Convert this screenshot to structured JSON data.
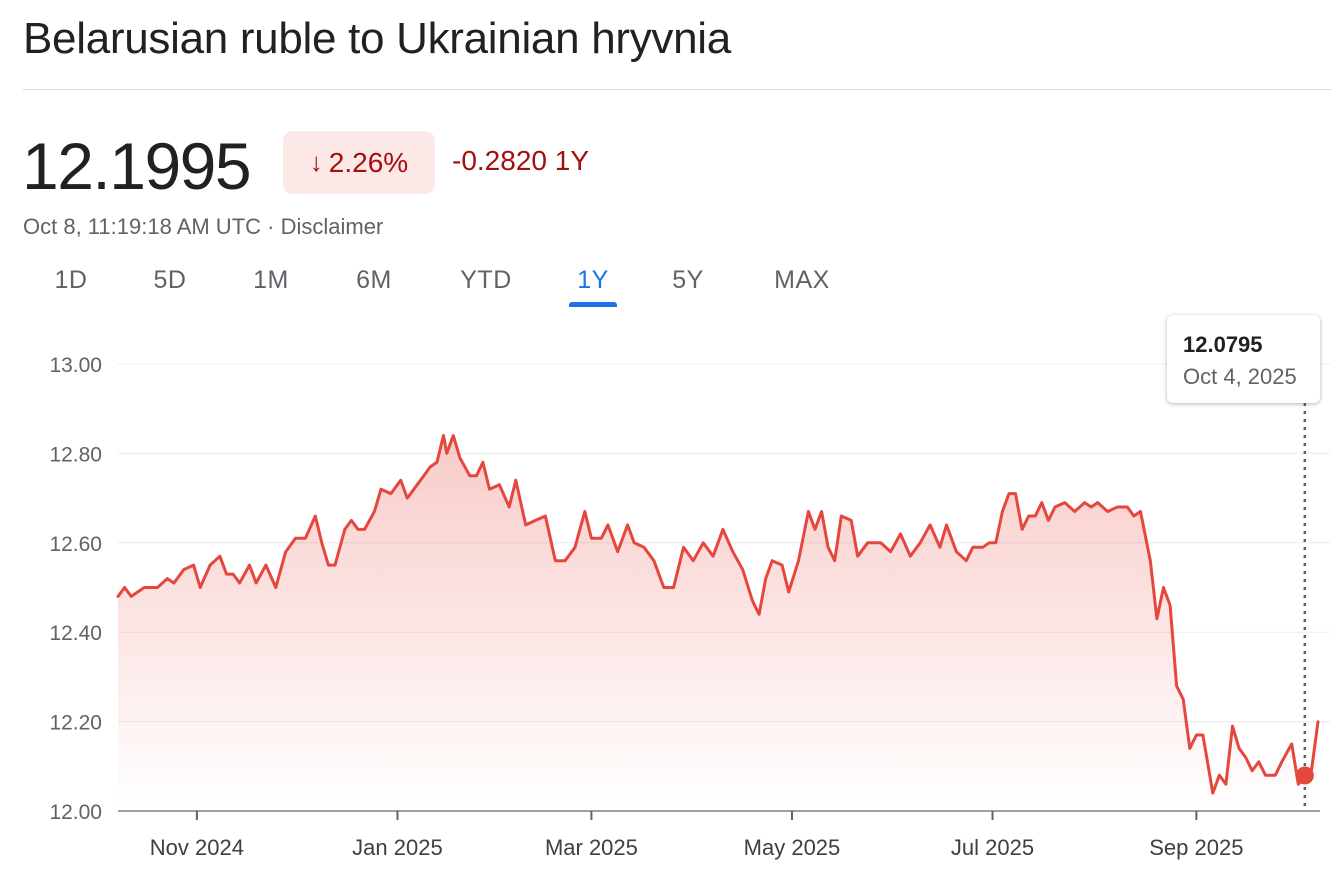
{
  "header": {
    "title": "Belarusian ruble to Ukrainian hryvnia",
    "price": "12.1995",
    "change_arrow": "↓",
    "change_percent": "2.26%",
    "change_abs": "-0.2820 1Y",
    "timestamp": "Oct 8, 11:19:18 AM UTC · ",
    "disclaimer": "Disclaimer"
  },
  "tabs": [
    {
      "label": "1D",
      "active": false
    },
    {
      "label": "5D",
      "active": false
    },
    {
      "label": "1M",
      "active": false
    },
    {
      "label": "6M",
      "active": false
    },
    {
      "label": "YTD",
      "active": false
    },
    {
      "label": "1Y",
      "active": true
    },
    {
      "label": "5Y",
      "active": false
    },
    {
      "label": "MAX",
      "active": false
    }
  ],
  "tooltip": {
    "value": "12.0795",
    "date": "Oct 4, 2025"
  },
  "colors": {
    "line": "#e5473e",
    "negative": "#a50e0e",
    "badge_bg": "#fce8e6",
    "accent": "#1a73e8"
  },
  "chart_data": {
    "type": "line",
    "title": "",
    "xlabel": "",
    "ylabel": "",
    "ylim": [
      12.0,
      13.0
    ],
    "y_ticks": [
      "13.00",
      "12.80",
      "12.60",
      "12.40",
      "12.20",
      "12.00"
    ],
    "y_tick_values": [
      13.0,
      12.8,
      12.6,
      12.4,
      12.2,
      12.0
    ],
    "x_range": [
      "2024-10-08",
      "2025-10-08"
    ],
    "x_ticks": [
      {
        "label": "Nov 2024",
        "date": "2024-11-01"
      },
      {
        "label": "Jan 2025",
        "date": "2025-01-01"
      },
      {
        "label": "Mar 2025",
        "date": "2025-03-01"
      },
      {
        "label": "May 2025",
        "date": "2025-05-01"
      },
      {
        "label": "Jul 2025",
        "date": "2025-07-01"
      },
      {
        "label": "Sep 2025",
        "date": "2025-09-01"
      }
    ],
    "grid": true,
    "highlight": {
      "date": "2025-10-04",
      "value": 12.0795
    },
    "series": [
      {
        "points": [
          [
            "2024-10-08",
            12.48
          ],
          [
            "2024-10-10",
            12.5
          ],
          [
            "2024-10-12",
            12.48
          ],
          [
            "2024-10-16",
            12.5
          ],
          [
            "2024-10-20",
            12.5
          ],
          [
            "2024-10-23",
            12.52
          ],
          [
            "2024-10-25",
            12.51
          ],
          [
            "2024-10-28",
            12.54
          ],
          [
            "2024-10-31",
            12.55
          ],
          [
            "2024-11-02",
            12.5
          ],
          [
            "2024-11-05",
            12.55
          ],
          [
            "2024-11-08",
            12.57
          ],
          [
            "2024-11-10",
            12.53
          ],
          [
            "2024-11-12",
            12.53
          ],
          [
            "2024-11-14",
            12.51
          ],
          [
            "2024-11-17",
            12.55
          ],
          [
            "2024-11-19",
            12.51
          ],
          [
            "2024-11-22",
            12.55
          ],
          [
            "2024-11-25",
            12.5
          ],
          [
            "2024-11-28",
            12.58
          ],
          [
            "2024-12-01",
            12.61
          ],
          [
            "2024-12-04",
            12.61
          ],
          [
            "2024-12-07",
            12.66
          ],
          [
            "2024-12-09",
            12.6
          ],
          [
            "2024-12-11",
            12.55
          ],
          [
            "2024-12-13",
            12.55
          ],
          [
            "2024-12-16",
            12.63
          ],
          [
            "2024-12-18",
            12.65
          ],
          [
            "2024-12-20",
            12.63
          ],
          [
            "2024-12-22",
            12.63
          ],
          [
            "2024-12-25",
            12.67
          ],
          [
            "2024-12-27",
            12.72
          ],
          [
            "2024-12-30",
            12.71
          ],
          [
            "2025-01-02",
            12.74
          ],
          [
            "2025-01-04",
            12.7
          ],
          [
            "2025-01-07",
            12.73
          ],
          [
            "2025-01-09",
            12.75
          ],
          [
            "2025-01-11",
            12.77
          ],
          [
            "2025-01-13",
            12.78
          ],
          [
            "2025-01-15",
            12.84
          ],
          [
            "2025-01-16",
            12.8
          ],
          [
            "2025-01-18",
            12.84
          ],
          [
            "2025-01-20",
            12.79
          ],
          [
            "2025-01-23",
            12.75
          ],
          [
            "2025-01-25",
            12.75
          ],
          [
            "2025-01-27",
            12.78
          ],
          [
            "2025-01-29",
            12.72
          ],
          [
            "2025-02-01",
            12.73
          ],
          [
            "2025-02-04",
            12.68
          ],
          [
            "2025-02-06",
            12.74
          ],
          [
            "2025-02-09",
            12.64
          ],
          [
            "2025-02-12",
            12.65
          ],
          [
            "2025-02-15",
            12.66
          ],
          [
            "2025-02-18",
            12.56
          ],
          [
            "2025-02-21",
            12.56
          ],
          [
            "2025-02-24",
            12.59
          ],
          [
            "2025-02-27",
            12.67
          ],
          [
            "2025-03-01",
            12.61
          ],
          [
            "2025-03-04",
            12.61
          ],
          [
            "2025-03-06",
            12.64
          ],
          [
            "2025-03-09",
            12.58
          ],
          [
            "2025-03-12",
            12.64
          ],
          [
            "2025-03-14",
            12.6
          ],
          [
            "2025-03-17",
            12.59
          ],
          [
            "2025-03-20",
            12.56
          ],
          [
            "2025-03-23",
            12.5
          ],
          [
            "2025-03-26",
            12.5
          ],
          [
            "2025-03-29",
            12.59
          ],
          [
            "2025-04-01",
            12.56
          ],
          [
            "2025-04-04",
            12.6
          ],
          [
            "2025-04-07",
            12.57
          ],
          [
            "2025-04-10",
            12.63
          ],
          [
            "2025-04-13",
            12.58
          ],
          [
            "2025-04-16",
            12.54
          ],
          [
            "2025-04-19",
            12.47
          ],
          [
            "2025-04-21",
            12.44
          ],
          [
            "2025-04-23",
            12.52
          ],
          [
            "2025-04-25",
            12.56
          ],
          [
            "2025-04-28",
            12.55
          ],
          [
            "2025-04-30",
            12.49
          ],
          [
            "2025-05-03",
            12.56
          ],
          [
            "2025-05-06",
            12.67
          ],
          [
            "2025-05-08",
            12.63
          ],
          [
            "2025-05-10",
            12.67
          ],
          [
            "2025-05-12",
            12.59
          ],
          [
            "2025-05-14",
            12.56
          ],
          [
            "2025-05-16",
            12.66
          ],
          [
            "2025-05-19",
            12.65
          ],
          [
            "2025-05-21",
            12.57
          ],
          [
            "2025-05-24",
            12.6
          ],
          [
            "2025-05-28",
            12.6
          ],
          [
            "2025-05-31",
            12.58
          ],
          [
            "2025-06-03",
            12.62
          ],
          [
            "2025-06-06",
            12.57
          ],
          [
            "2025-06-09",
            12.6
          ],
          [
            "2025-06-12",
            12.64
          ],
          [
            "2025-06-15",
            12.59
          ],
          [
            "2025-06-17",
            12.64
          ],
          [
            "2025-06-20",
            12.58
          ],
          [
            "2025-06-23",
            12.56
          ],
          [
            "2025-06-25",
            12.59
          ],
          [
            "2025-06-28",
            12.59
          ],
          [
            "2025-06-30",
            12.6
          ],
          [
            "2025-07-02",
            12.6
          ],
          [
            "2025-07-04",
            12.67
          ],
          [
            "2025-07-06",
            12.71
          ],
          [
            "2025-07-08",
            12.71
          ],
          [
            "2025-07-10",
            12.63
          ],
          [
            "2025-07-12",
            12.66
          ],
          [
            "2025-07-14",
            12.66
          ],
          [
            "2025-07-16",
            12.69
          ],
          [
            "2025-07-18",
            12.65
          ],
          [
            "2025-07-20",
            12.68
          ],
          [
            "2025-07-23",
            12.69
          ],
          [
            "2025-07-26",
            12.67
          ],
          [
            "2025-07-29",
            12.69
          ],
          [
            "2025-07-31",
            12.68
          ],
          [
            "2025-08-02",
            12.69
          ],
          [
            "2025-08-05",
            12.67
          ],
          [
            "2025-08-08",
            12.68
          ],
          [
            "2025-08-11",
            12.68
          ],
          [
            "2025-08-13",
            12.66
          ],
          [
            "2025-08-15",
            12.67
          ],
          [
            "2025-08-18",
            12.56
          ],
          [
            "2025-08-20",
            12.43
          ],
          [
            "2025-08-22",
            12.5
          ],
          [
            "2025-08-24",
            12.46
          ],
          [
            "2025-08-26",
            12.28
          ],
          [
            "2025-08-28",
            12.25
          ],
          [
            "2025-08-30",
            12.14
          ],
          [
            "2025-09-01",
            12.17
          ],
          [
            "2025-09-03",
            12.17
          ],
          [
            "2025-09-06",
            12.04
          ],
          [
            "2025-09-08",
            12.08
          ],
          [
            "2025-09-10",
            12.06
          ],
          [
            "2025-09-12",
            12.19
          ],
          [
            "2025-09-14",
            12.14
          ],
          [
            "2025-09-16",
            12.12
          ],
          [
            "2025-09-18",
            12.09
          ],
          [
            "2025-09-20",
            12.11
          ],
          [
            "2025-09-22",
            12.08
          ],
          [
            "2025-09-25",
            12.08
          ],
          [
            "2025-09-27",
            12.11
          ],
          [
            "2025-09-30",
            12.15
          ],
          [
            "2025-10-02",
            12.06
          ],
          [
            "2025-10-04",
            12.0795
          ],
          [
            "2025-10-06",
            12.09
          ],
          [
            "2025-10-08",
            12.1995
          ]
        ]
      }
    ]
  }
}
